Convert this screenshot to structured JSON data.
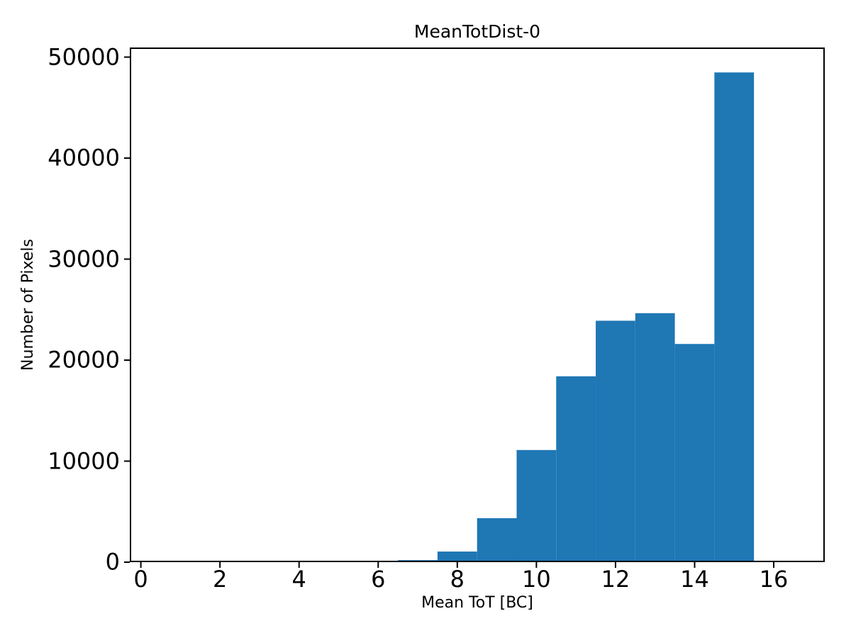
{
  "chart_data": {
    "type": "bar",
    "subtype": "histogram",
    "title": "MeanTotDist-0",
    "xlabel": "Mean ToT [BC]",
    "ylabel": "Number of Pixels",
    "bin_edges": [
      0.5,
      1.5,
      2.5,
      3.5,
      4.5,
      5.5,
      6.5,
      7.5,
      8.5,
      9.5,
      10.5,
      11.5,
      12.5,
      13.5,
      14.5,
      15.5,
      16.5
    ],
    "bin_centers": [
      1,
      2,
      3,
      4,
      5,
      6,
      7,
      8,
      9,
      10,
      11,
      12,
      13,
      14,
      15,
      16
    ],
    "values": [
      0,
      0,
      0,
      0,
      0,
      0,
      200,
      1050,
      4350,
      11100,
      18400,
      23900,
      24650,
      21600,
      48480,
      0
    ],
    "xticks": [
      0,
      2,
      4,
      6,
      8,
      10,
      12,
      14,
      16
    ],
    "yticks": [
      0,
      10000,
      20000,
      30000,
      40000,
      50000
    ],
    "xlim": [
      -0.28,
      17.29
    ],
    "ylim": [
      0,
      50950
    ],
    "bar_color": "#1f77b4",
    "axis_color": "#000000",
    "background": "#ffffff",
    "grid": false,
    "legend": null
  }
}
